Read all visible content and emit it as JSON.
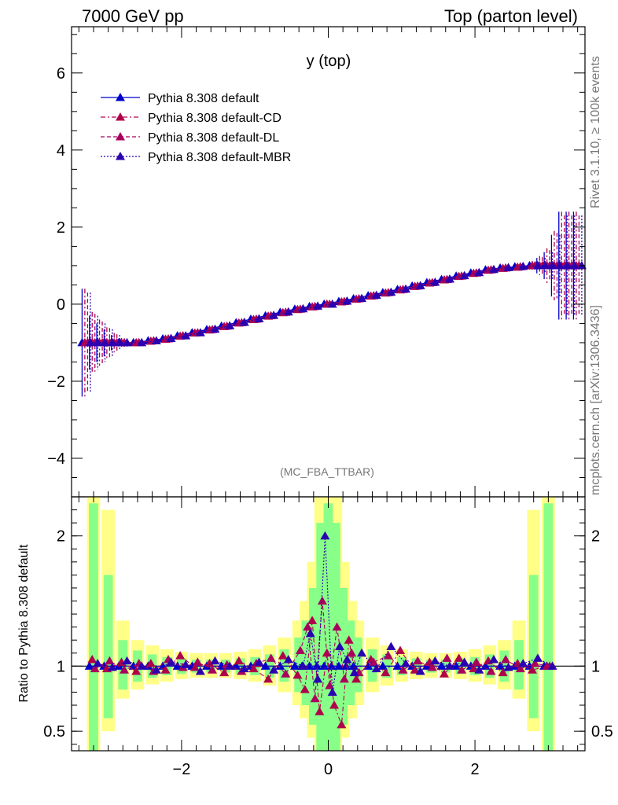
{
  "header": {
    "left": "7000 GeV pp",
    "right": "Top (parton level)"
  },
  "side": {
    "rivet": "Rivet 3.1.10, ≥ 100k events",
    "mcplots": "mcplots.cern.ch [arXiv:1306.3436]"
  },
  "colors": {
    "default": "#0000cc",
    "cd": "#b0004a",
    "dl": "#a8005c",
    "mbr": "#2a00b0",
    "band_yellow": "#ffff88",
    "band_green": "#88ff88"
  },
  "chart_data": [
    {
      "type": "line",
      "title": "y (top)",
      "annotation": "(MC_FBA_TTBAR)",
      "xlabel": "",
      "ylabel": "",
      "xlim": [
        -3.5,
        3.5
      ],
      "ylim": [
        -5,
        7.2
      ],
      "yticks": [
        -4,
        -2,
        0,
        2,
        4,
        6
      ],
      "xticks": [
        -2,
        0,
        2
      ],
      "legend_position": "top-left",
      "x": [
        -3.3,
        -3.2,
        -3.1,
        -3.0,
        -2.9,
        -2.8,
        -2.6,
        -2.4,
        -2.2,
        -2.0,
        -1.8,
        -1.6,
        -1.4,
        -1.2,
        -1.0,
        -0.8,
        -0.6,
        -0.4,
        -0.2,
        0.0,
        0.2,
        0.4,
        0.6,
        0.8,
        1.0,
        1.2,
        1.4,
        1.6,
        1.8,
        2.0,
        2.2,
        2.4,
        2.6,
        2.8,
        2.9,
        3.0,
        3.1,
        3.2,
        3.3,
        3.4
      ],
      "series": [
        {
          "name": "Pythia 8.308 default",
          "style": "solid",
          "y": [
            -1.0,
            -1.0,
            -1.0,
            -1.0,
            -1.0,
            -1.0,
            -1.0,
            -0.95,
            -0.9,
            -0.82,
            -0.74,
            -0.66,
            -0.57,
            -0.48,
            -0.39,
            -0.3,
            -0.21,
            -0.13,
            -0.06,
            0.0,
            0.07,
            0.14,
            0.22,
            0.3,
            0.38,
            0.47,
            0.56,
            0.64,
            0.73,
            0.81,
            0.89,
            0.94,
            0.97,
            1.0,
            1.0,
            1.0,
            1.0,
            1.0,
            1.0,
            1.0
          ],
          "err": [
            1.4,
            0.7,
            0.5,
            0.35,
            0.2,
            0.1,
            0.05,
            0.04,
            0.03,
            0.02,
            0.02,
            0.02,
            0.02,
            0.02,
            0.02,
            0.02,
            0.02,
            0.02,
            0.02,
            0.02,
            0.02,
            0.02,
            0.02,
            0.02,
            0.02,
            0.02,
            0.02,
            0.02,
            0.02,
            0.02,
            0.03,
            0.04,
            0.05,
            0.1,
            0.2,
            0.35,
            0.8,
            1.4,
            1.4,
            1.4
          ]
        },
        {
          "name": "Pythia 8.308 default-CD",
          "style": "dashdot",
          "y": [
            -1.0,
            -1.0,
            -1.0,
            -1.0,
            -1.0,
            -1.0,
            -1.0,
            -0.96,
            -0.91,
            -0.83,
            -0.75,
            -0.67,
            -0.58,
            -0.49,
            -0.4,
            -0.31,
            -0.22,
            -0.14,
            -0.07,
            0.0,
            0.06,
            0.13,
            0.21,
            0.29,
            0.37,
            0.46,
            0.55,
            0.63,
            0.72,
            0.8,
            0.88,
            0.93,
            0.96,
            1.0,
            1.0,
            1.0,
            1.0,
            1.0,
            1.0,
            1.0
          ],
          "err": [
            1.4,
            0.8,
            0.6,
            0.4,
            0.25,
            0.12,
            0.05,
            0.04,
            0.03,
            0.02,
            0.02,
            0.02,
            0.02,
            0.02,
            0.02,
            0.02,
            0.02,
            0.02,
            0.02,
            0.02,
            0.02,
            0.02,
            0.02,
            0.02,
            0.02,
            0.02,
            0.02,
            0.02,
            0.02,
            0.02,
            0.03,
            0.04,
            0.05,
            0.12,
            0.25,
            0.45,
            0.9,
            1.4,
            1.4,
            1.4
          ]
        },
        {
          "name": "Pythia 8.308 default-DL",
          "style": "dashed",
          "y": [
            -1.0,
            -1.0,
            -1.0,
            -1.0,
            -1.0,
            -1.0,
            -1.0,
            -0.95,
            -0.9,
            -0.82,
            -0.74,
            -0.66,
            -0.57,
            -0.48,
            -0.39,
            -0.3,
            -0.21,
            -0.13,
            -0.06,
            0.0,
            0.07,
            0.14,
            0.22,
            0.3,
            0.38,
            0.47,
            0.56,
            0.64,
            0.73,
            0.81,
            0.89,
            0.94,
            0.97,
            1.0,
            1.0,
            1.0,
            1.0,
            1.0,
            1.0,
            1.0
          ],
          "err": [
            1.3,
            0.75,
            0.55,
            0.38,
            0.22,
            0.11,
            0.05,
            0.04,
            0.03,
            0.02,
            0.02,
            0.02,
            0.02,
            0.02,
            0.02,
            0.02,
            0.02,
            0.02,
            0.02,
            0.02,
            0.02,
            0.02,
            0.02,
            0.02,
            0.02,
            0.02,
            0.02,
            0.02,
            0.02,
            0.02,
            0.03,
            0.04,
            0.05,
            0.11,
            0.22,
            0.4,
            0.85,
            1.3,
            1.3,
            1.3
          ]
        },
        {
          "name": "Pythia 8.308 default-MBR",
          "style": "dotted",
          "y": [
            -1.0,
            -1.0,
            -1.0,
            -1.0,
            -1.0,
            -1.0,
            -1.0,
            -0.95,
            -0.89,
            -0.82,
            -0.74,
            -0.65,
            -0.56,
            -0.47,
            -0.38,
            -0.29,
            -0.2,
            -0.12,
            -0.05,
            0.0,
            0.08,
            0.15,
            0.23,
            0.31,
            0.39,
            0.48,
            0.57,
            0.65,
            0.74,
            0.82,
            0.9,
            0.95,
            0.98,
            1.0,
            1.0,
            1.0,
            1.0,
            1.0,
            1.0,
            1.0
          ],
          "err": [
            1.3,
            0.7,
            0.5,
            0.35,
            0.2,
            0.1,
            0.05,
            0.04,
            0.03,
            0.02,
            0.02,
            0.02,
            0.02,
            0.02,
            0.02,
            0.02,
            0.02,
            0.02,
            0.02,
            0.02,
            0.02,
            0.02,
            0.02,
            0.02,
            0.02,
            0.02,
            0.02,
            0.02,
            0.02,
            0.02,
            0.03,
            0.04,
            0.05,
            0.1,
            0.2,
            0.35,
            0.8,
            1.3,
            1.3,
            1.3
          ]
        }
      ]
    },
    {
      "type": "line",
      "title": "",
      "xlabel": "",
      "ylabel": "Ratio to Pythia 8.308 default",
      "xlim": [
        -3.5,
        3.5
      ],
      "ylim": [
        0.35,
        2.3
      ],
      "yticks": [
        0.5,
        1,
        2
      ],
      "xticks": [
        -2,
        0,
        2
      ],
      "x": [
        -3.2,
        -3.0,
        -2.8,
        -2.6,
        -2.4,
        -2.2,
        -2.0,
        -1.8,
        -1.6,
        -1.4,
        -1.2,
        -1.0,
        -0.8,
        -0.6,
        -0.4,
        -0.3,
        -0.2,
        -0.1,
        0.0,
        0.1,
        0.2,
        0.3,
        0.4,
        0.6,
        0.8,
        1.0,
        1.2,
        1.4,
        1.6,
        1.8,
        2.0,
        2.2,
        2.4,
        2.6,
        2.8,
        3.0
      ],
      "bands": {
        "yellow": [
          [
            0.35,
            2.3
          ],
          [
            0.5,
            2.2
          ],
          [
            0.75,
            1.35
          ],
          [
            0.82,
            1.2
          ],
          [
            0.86,
            1.16
          ],
          [
            0.88,
            1.13
          ],
          [
            0.9,
            1.11
          ],
          [
            0.91,
            1.1
          ],
          [
            0.91,
            1.1
          ],
          [
            0.91,
            1.1
          ],
          [
            0.9,
            1.11
          ],
          [
            0.88,
            1.13
          ],
          [
            0.85,
            1.16
          ],
          [
            0.8,
            1.22
          ],
          [
            0.7,
            1.35
          ],
          [
            0.6,
            1.5
          ],
          [
            0.45,
            1.8
          ],
          [
            0.35,
            2.3
          ],
          [
            0.35,
            2.3
          ],
          [
            0.35,
            2.3
          ],
          [
            0.45,
            1.8
          ],
          [
            0.6,
            1.5
          ],
          [
            0.7,
            1.35
          ],
          [
            0.8,
            1.22
          ],
          [
            0.85,
            1.16
          ],
          [
            0.88,
            1.13
          ],
          [
            0.9,
            1.11
          ],
          [
            0.91,
            1.1
          ],
          [
            0.91,
            1.1
          ],
          [
            0.9,
            1.11
          ],
          [
            0.88,
            1.13
          ],
          [
            0.86,
            1.16
          ],
          [
            0.82,
            1.2
          ],
          [
            0.75,
            1.35
          ],
          [
            0.5,
            2.2
          ],
          [
            0.35,
            2.3
          ]
        ],
        "green": [
          [
            0.35,
            2.25
          ],
          [
            0.6,
            1.7
          ],
          [
            0.82,
            1.2
          ],
          [
            0.88,
            1.12
          ],
          [
            0.91,
            1.09
          ],
          [
            0.93,
            1.07
          ],
          [
            0.94,
            1.06
          ],
          [
            0.95,
            1.05
          ],
          [
            0.95,
            1.05
          ],
          [
            0.95,
            1.05
          ],
          [
            0.94,
            1.06
          ],
          [
            0.93,
            1.07
          ],
          [
            0.91,
            1.09
          ],
          [
            0.88,
            1.13
          ],
          [
            0.8,
            1.22
          ],
          [
            0.7,
            1.35
          ],
          [
            0.55,
            1.6
          ],
          [
            0.35,
            2.1
          ],
          [
            0.35,
            2.25
          ],
          [
            0.35,
            2.1
          ],
          [
            0.55,
            1.6
          ],
          [
            0.7,
            1.35
          ],
          [
            0.8,
            1.22
          ],
          [
            0.88,
            1.13
          ],
          [
            0.91,
            1.09
          ],
          [
            0.93,
            1.07
          ],
          [
            0.94,
            1.06
          ],
          [
            0.95,
            1.05
          ],
          [
            0.95,
            1.05
          ],
          [
            0.94,
            1.06
          ],
          [
            0.93,
            1.07
          ],
          [
            0.91,
            1.09
          ],
          [
            0.88,
            1.12
          ],
          [
            0.82,
            1.2
          ],
          [
            0.6,
            1.7
          ],
          [
            0.35,
            2.25
          ]
        ]
      },
      "series": [
        {
          "name": "Pythia 8.308 default",
          "style": "solid",
          "y": [
            1,
            1,
            1,
            1,
            1,
            1,
            1,
            1,
            1,
            1,
            1,
            1,
            1,
            1,
            1,
            1,
            1,
            1,
            1,
            1,
            1,
            1,
            1,
            1,
            1,
            1,
            1,
            1,
            1,
            1,
            1,
            1,
            1,
            1,
            1,
            1
          ]
        },
        {
          "name": "Pythia 8.308 default-CD",
          "style": "dashdot",
          "y": [
            1.05,
            0.98,
            1.03,
            0.96,
            1.02,
            0.97,
            1.08,
            0.99,
            1.02,
            0.95,
            1.04,
            0.98,
            0.9,
            1.08,
            0.93,
            0.82,
            1.35,
            0.65,
            1.1,
            0.7,
            0.55,
            1.2,
            0.9,
            1.05,
            0.95,
            1.12,
            0.97,
            1.03,
            0.94,
            1.06,
            0.98,
            1.04,
            0.95,
            1.02,
            0.97,
            1.0
          ]
        },
        {
          "name": "Pythia 8.308 default-DL",
          "style": "dashed",
          "y": [
            0.98,
            1.04,
            0.97,
            1.02,
            0.96,
            1.05,
            0.99,
            1.03,
            0.97,
            1.01,
            0.96,
            1.02,
            1.06,
            0.94,
            1.12,
            1.3,
            0.75,
            1.5,
            0.85,
            1.3,
            0.9,
            1.1,
            0.95,
            1.03,
            1.08,
            0.97,
            1.04,
            0.99,
            1.06,
            0.97,
            1.03,
            0.96,
            1.05,
            0.98,
            1.02,
            1.0
          ]
        },
        {
          "name": "Pythia 8.308 default-MBR",
          "style": "dotted",
          "y": [
            1.02,
            0.99,
            1.04,
            1.0,
            0.97,
            1.03,
            1.01,
            0.96,
            1.04,
            1.0,
            0.98,
            1.03,
            0.97,
            1.05,
            1.0,
            1.25,
            0.9,
            2.0,
            0.8,
            1.15,
            1.05,
            0.95,
            1.1,
            0.98,
            1.15,
            1.02,
            0.96,
            1.04,
            1.0,
            1.03,
            0.97,
            1.05,
            0.99,
            1.02,
            1.06,
            1.0
          ]
        }
      ]
    }
  ]
}
